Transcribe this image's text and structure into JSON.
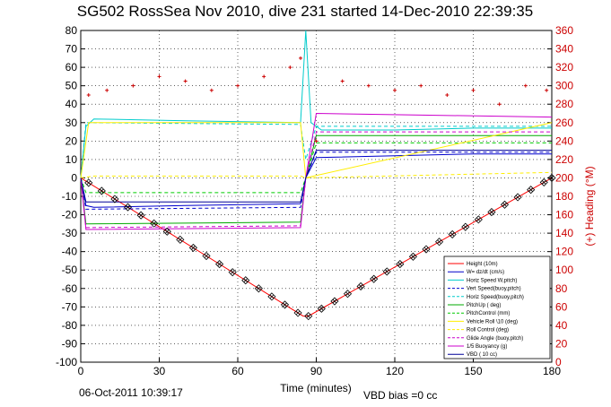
{
  "chart_data": {
    "type": "line",
    "title": "SG502 RossSea Nov 2010, dive 231 started 14-Dec-2010 22:39:35",
    "xlabel": "Time (minutes)",
    "ylabel_right": "(+) Heading (°M)",
    "xlim": [
      0,
      180
    ],
    "ylim": [
      -100,
      80
    ],
    "ylim_right": [
      0,
      360
    ],
    "xticks": [
      0,
      30,
      60,
      90,
      120,
      150,
      180
    ],
    "yticks": [
      -100,
      -90,
      -80,
      -70,
      -60,
      -50,
      -40,
      -30,
      -20,
      -10,
      0,
      10,
      20,
      30,
      40,
      50,
      60,
      70,
      80
    ],
    "yticks_right": [
      0,
      20,
      40,
      60,
      80,
      100,
      120,
      140,
      160,
      180,
      200,
      220,
      240,
      260,
      280,
      300,
      320,
      340,
      360
    ],
    "grid": true,
    "legend_position": "bottom-right",
    "footer_date": "06-Oct-2011 10:39:17",
    "footer_note": "VBD bias =0 cc",
    "series": [
      {
        "name": "Height (10m)",
        "color": "#ff0000",
        "style": "solid",
        "x": [
          0,
          85,
          87,
          180
        ],
        "y": [
          0,
          -75,
          -75,
          0
        ]
      },
      {
        "name": "W= dz/dt (cm/s)",
        "color": "#0000cc",
        "style": "solid",
        "x": [
          0,
          2,
          5,
          40,
          84,
          86,
          90,
          120,
          150,
          180
        ],
        "y": [
          0,
          -15,
          -16,
          -15,
          -14,
          0,
          11,
          12,
          13,
          13
        ]
      },
      {
        "name": "Horiz Speed W,pitch)",
        "color": "#00cccc",
        "style": "solid",
        "x": [
          0,
          2,
          5,
          40,
          84,
          86,
          88,
          92,
          120,
          150,
          180
        ],
        "y": [
          0,
          28,
          32,
          31,
          30,
          80,
          30,
          26,
          26,
          27,
          27
        ]
      },
      {
        "name": "Vert Speed(buoy,pitch)",
        "color": "#0000cc",
        "style": "dashed",
        "x": [
          0,
          2,
          84,
          86,
          90,
          180
        ],
        "y": [
          0,
          -17,
          -16,
          0,
          14,
          14
        ]
      },
      {
        "name": "Horiz Speed(buoy,pitch)",
        "color": "#00cccc",
        "style": "dashed",
        "x": [
          0,
          2,
          84,
          86,
          90,
          180
        ],
        "y": [
          0,
          30,
          29,
          10,
          28,
          28
        ]
      },
      {
        "name": "PitchUp ( deg)",
        "color": "#00aa00",
        "style": "solid",
        "x": [
          0,
          2,
          84,
          86,
          90,
          180
        ],
        "y": [
          0,
          -25,
          -24,
          0,
          23,
          23
        ]
      },
      {
        "name": "PitchControl (mm)",
        "color": "#00cc00",
        "style": "dashed",
        "x": [
          0,
          2,
          84,
          86,
          90,
          180
        ],
        "y": [
          0,
          -8,
          -8,
          0,
          19,
          19
        ]
      },
      {
        "name": "Vehicle Roll \\10 (deg)",
        "color": "#ffee00",
        "style": "solid",
        "x": [
          0,
          3,
          84,
          86,
          180
        ],
        "y": [
          0,
          30,
          30,
          0,
          30
        ]
      },
      {
        "name": "Roll Control (deg)",
        "color": "#ffee00",
        "style": "dashed",
        "x": [
          0,
          5,
          84,
          86,
          180
        ],
        "y": [
          0,
          1,
          1,
          0,
          3
        ]
      },
      {
        "name": "Glide Angle (buoy,pitch)",
        "color": "#cc00cc",
        "style": "dashed",
        "x": [
          0,
          2,
          84,
          86,
          90,
          180
        ],
        "y": [
          0,
          -27,
          -26,
          0,
          25,
          25
        ]
      },
      {
        "name": "1/5 Buoyancy (g)",
        "color": "#cc00cc",
        "style": "solid",
        "x": [
          0,
          2,
          84,
          86,
          90,
          180
        ],
        "y": [
          0,
          -28,
          -27,
          0,
          35,
          33
        ]
      },
      {
        "name": "VBD ( 10 cc)",
        "color": "#000099",
        "style": "solid",
        "x": [
          0,
          2,
          84,
          86,
          90,
          180
        ],
        "y": [
          0,
          -13,
          -13,
          0,
          15,
          15
        ]
      }
    ],
    "heading_series": {
      "name": "(+) Heading (°M)",
      "color": "#cc0000",
      "axis": "right",
      "x": [
        3,
        10,
        20,
        30,
        40,
        50,
        60,
        70,
        80,
        84,
        90,
        100,
        110,
        120,
        130,
        140,
        150,
        160,
        170,
        178
      ],
      "y": [
        290,
        295,
        300,
        310,
        305,
        295,
        300,
        310,
        320,
        330,
        240,
        305,
        300,
        295,
        300,
        290,
        295,
        280,
        300,
        295
      ]
    },
    "markers": {
      "symbol": "diamond-x",
      "x": [
        3,
        8,
        13,
        18,
        23,
        28,
        33,
        38,
        43,
        48,
        53,
        58,
        63,
        68,
        73,
        78,
        83,
        87,
        92,
        97,
        102,
        107,
        112,
        117,
        122,
        127,
        132,
        137,
        142,
        147,
        152,
        157,
        162,
        167,
        172,
        177,
        180
      ]
    }
  }
}
